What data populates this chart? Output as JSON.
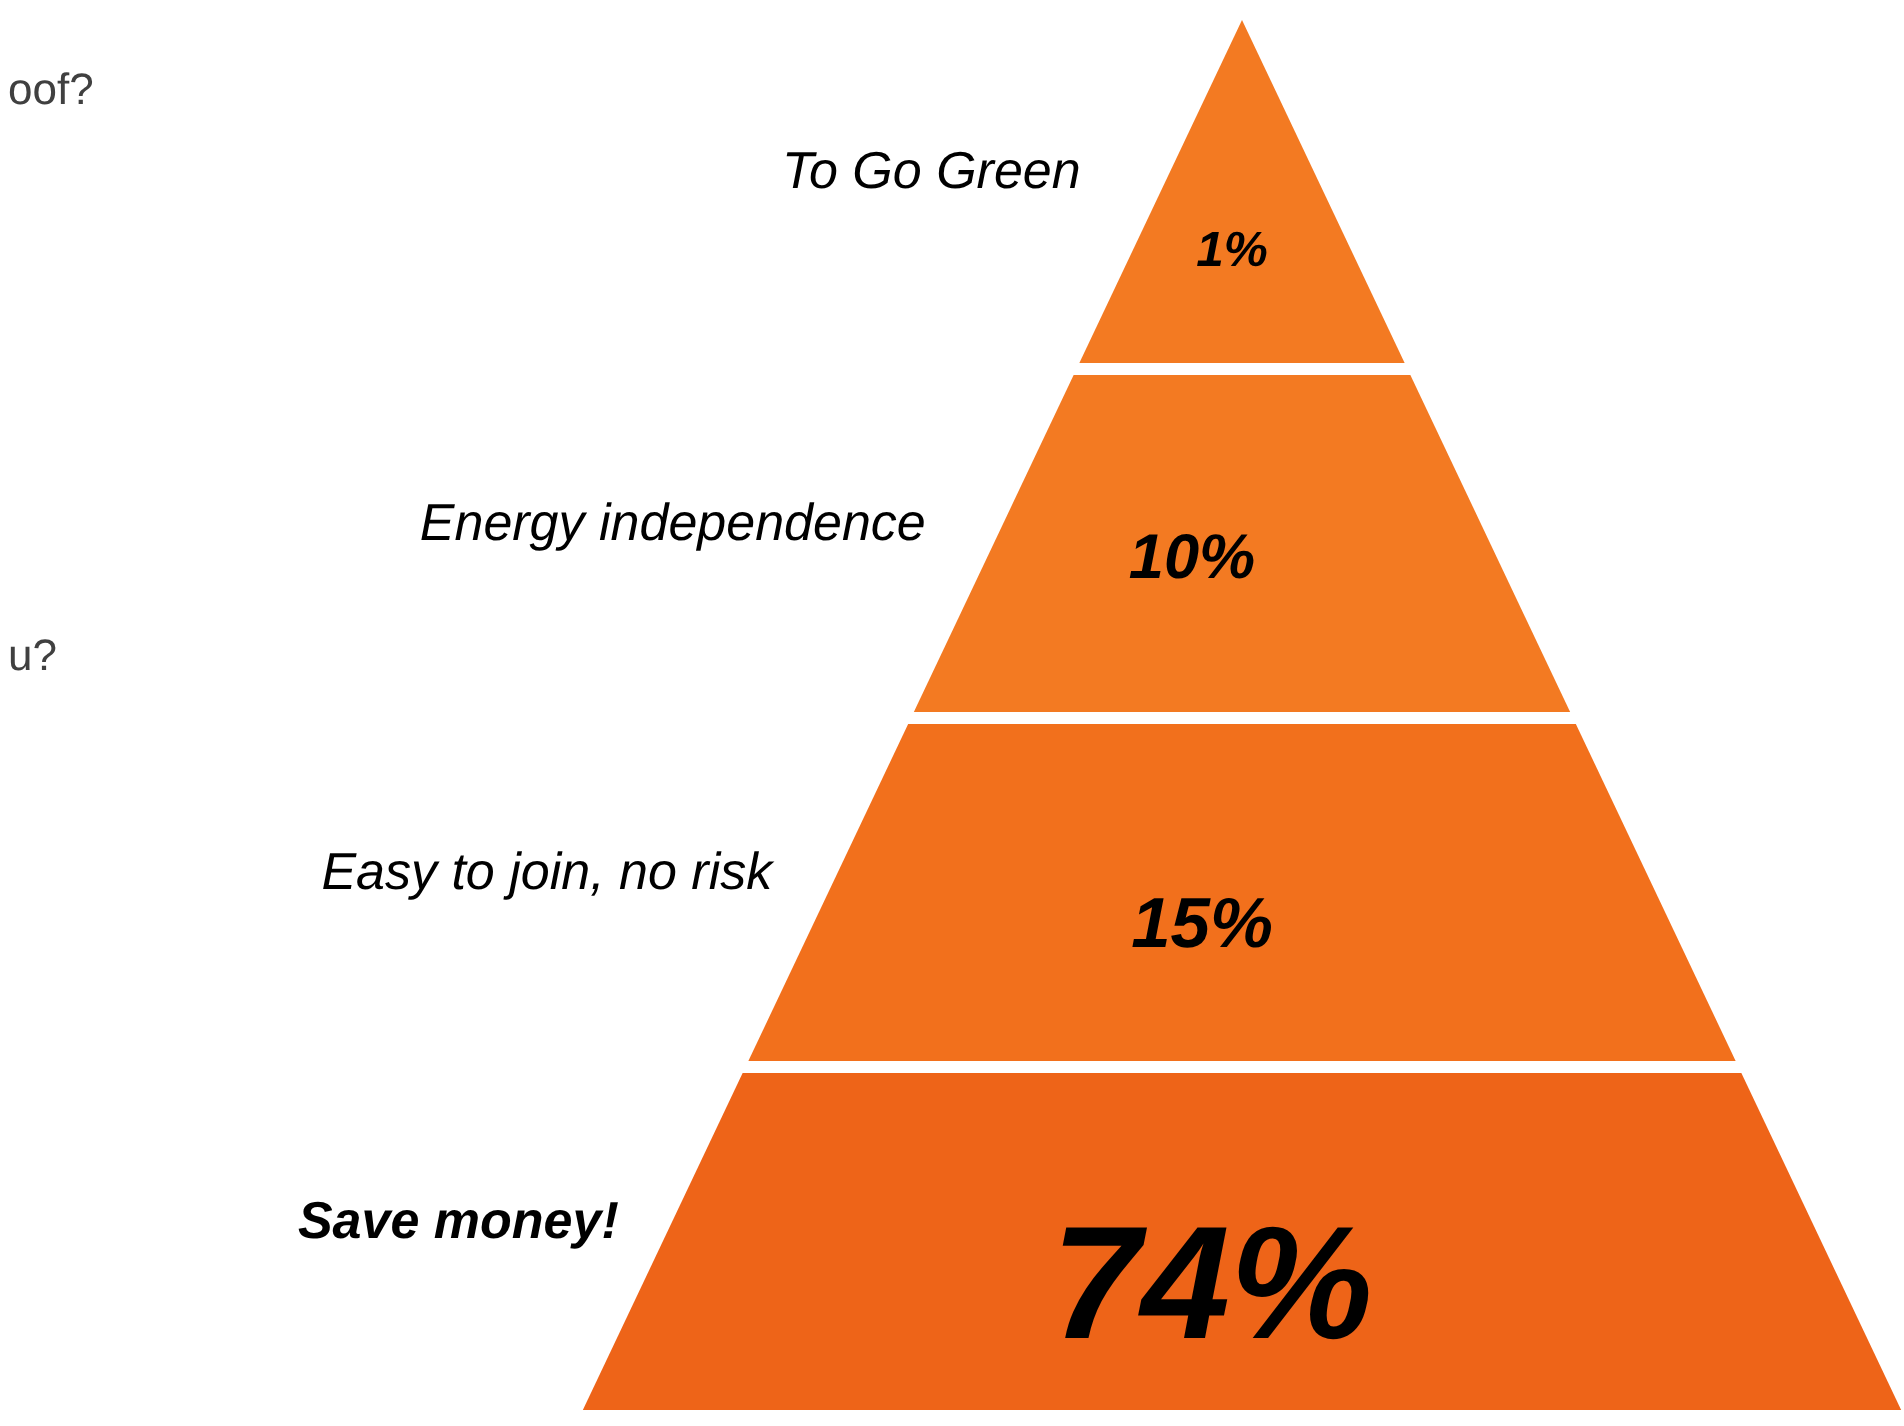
{
  "chart_data": {
    "type": "other",
    "categories": [
      "To Go Green",
      "Energy independence",
      "Easy to join, no risk",
      "Save money!"
    ],
    "values": [
      1,
      10,
      15,
      74
    ],
    "value_labels": [
      "1%",
      "10%",
      "15%",
      "74%"
    ],
    "colors": [
      "#f37a22",
      "#f37a22",
      "#f2701c",
      "#ee6418"
    ],
    "annotations": [
      "oof?",
      "u?"
    ]
  }
}
